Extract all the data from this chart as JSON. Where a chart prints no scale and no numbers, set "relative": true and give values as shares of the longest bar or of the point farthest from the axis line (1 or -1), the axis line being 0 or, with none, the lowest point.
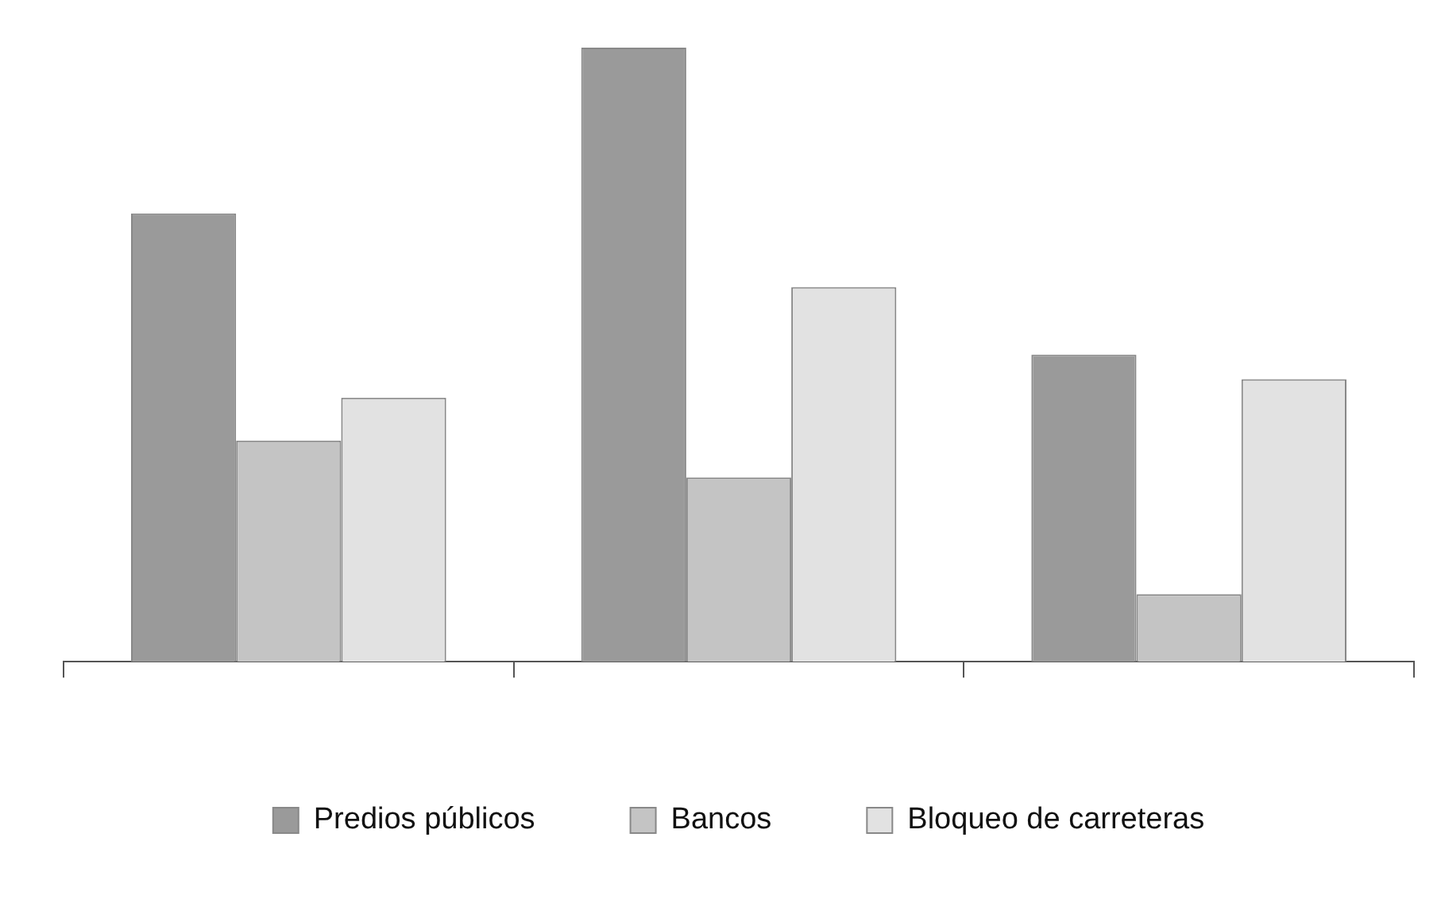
{
  "chart_data": {
    "type": "bar",
    "relative": true,
    "categories": [
      null,
      null,
      null
    ],
    "series": [
      {
        "name": "Predios públicos",
        "color": "#9a9a9a",
        "values": [
          0.73,
          1,
          0.5
        ]
      },
      {
        "name": "Bancos",
        "color": "#c4c4c4",
        "values": [
          0.36,
          0.3,
          0.11
        ]
      },
      {
        "name": "Bloqueo de carreteras",
        "color": "#e2e2e2",
        "values": [
          0.43,
          0.61,
          0.46
        ]
      }
    ],
    "grid": false,
    "legend": "bottom"
  }
}
